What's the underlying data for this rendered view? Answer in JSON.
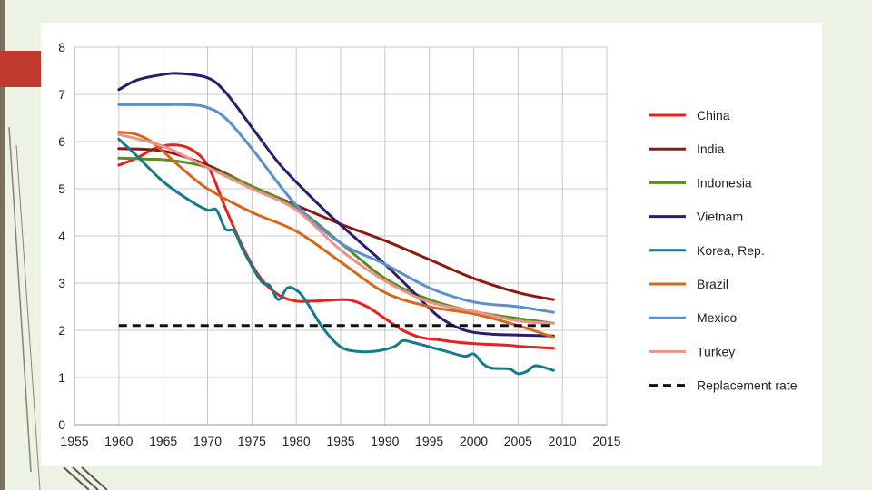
{
  "chart_data": {
    "type": "line",
    "title": "",
    "xlabel": "",
    "ylabel": "",
    "xlim": [
      1955,
      2015
    ],
    "ylim": [
      0,
      8
    ],
    "xticks": [
      1955,
      1960,
      1965,
      1970,
      1975,
      1980,
      1985,
      1990,
      1995,
      2000,
      2005,
      2010,
      2015
    ],
    "yticks": [
      0,
      1,
      2,
      3,
      4,
      5,
      6,
      7,
      8
    ],
    "grid": true,
    "legend_position": "right",
    "series": [
      {
        "name": "China",
        "color": "#e8201e",
        "dashed": false,
        "x": [
          1960,
          1962,
          1964,
          1966,
          1968,
          1970,
          1972,
          1974,
          1976,
          1978,
          1980,
          1982,
          1984,
          1986,
          1988,
          1990,
          1992,
          1994,
          1996,
          1998,
          2000,
          2002,
          2004,
          2006,
          2009
        ],
        "y": [
          5.5,
          5.65,
          5.85,
          5.93,
          5.85,
          5.5,
          4.6,
          3.75,
          3.1,
          2.75,
          2.62,
          2.62,
          2.64,
          2.64,
          2.5,
          2.25,
          2.0,
          1.85,
          1.8,
          1.75,
          1.72,
          1.7,
          1.68,
          1.65,
          1.62
        ]
      },
      {
        "name": "India",
        "color": "#8b1a12",
        "dashed": false,
        "x": [
          1960,
          1965,
          1970,
          1975,
          1980,
          1985,
          1990,
          1995,
          2000,
          2005,
          2009
        ],
        "y": [
          5.85,
          5.8,
          5.5,
          5.05,
          4.65,
          4.25,
          3.9,
          3.5,
          3.1,
          2.8,
          2.65
        ]
      },
      {
        "name": "Indonesia",
        "color": "#5a8f1e",
        "dashed": false,
        "x": [
          1960,
          1963,
          1966,
          1970,
          1975,
          1980,
          1985,
          1990,
          1995,
          2000,
          2005,
          2009
        ],
        "y": [
          5.65,
          5.63,
          5.6,
          5.45,
          5.05,
          4.6,
          3.85,
          3.1,
          2.65,
          2.4,
          2.25,
          2.15
        ]
      },
      {
        "name": "Vietnam",
        "color": "#2b1d6b",
        "dashed": false,
        "x": [
          1960,
          1962,
          1965,
          1967,
          1970,
          1972,
          1975,
          1978,
          1981,
          1984,
          1987,
          1990,
          1993,
          1996,
          1999,
          2002,
          2005,
          2009
        ],
        "y": [
          7.1,
          7.3,
          7.42,
          7.44,
          7.35,
          7.05,
          6.3,
          5.55,
          4.95,
          4.4,
          3.9,
          3.4,
          2.85,
          2.3,
          2.0,
          1.92,
          1.9,
          1.88
        ]
      },
      {
        "name": "Korea, Rep.",
        "color": "#157a8c",
        "dashed": false,
        "x": [
          1960,
          1962,
          1965,
          1968,
          1970,
          1971,
          1972,
          1973,
          1974,
          1976,
          1977,
          1978,
          1979,
          1980,
          1981,
          1983,
          1985,
          1987,
          1989,
          1991,
          1992,
          1993,
          1995,
          1997,
          1999,
          2000,
          2001,
          2002,
          2004,
          2005,
          2006,
          2007,
          2009
        ],
        "y": [
          6.05,
          5.7,
          5.15,
          4.75,
          4.55,
          4.55,
          4.15,
          4.1,
          3.7,
          3.05,
          2.95,
          2.65,
          2.9,
          2.85,
          2.65,
          2.05,
          1.65,
          1.55,
          1.56,
          1.65,
          1.78,
          1.75,
          1.65,
          1.55,
          1.45,
          1.5,
          1.3,
          1.2,
          1.18,
          1.08,
          1.13,
          1.25,
          1.15
        ]
      },
      {
        "name": "Brazil",
        "color": "#d4691b",
        "dashed": false,
        "x": [
          1960,
          1962,
          1964,
          1967,
          1970,
          1975,
          1980,
          1985,
          1990,
          1995,
          2000,
          2005,
          2009
        ],
        "y": [
          6.2,
          6.15,
          5.95,
          5.45,
          5.0,
          4.5,
          4.1,
          3.45,
          2.8,
          2.5,
          2.35,
          2.1,
          1.85
        ]
      },
      {
        "name": "Mexico",
        "color": "#5b8fd0",
        "dashed": false,
        "x": [
          1960,
          1965,
          1968,
          1970,
          1972,
          1975,
          1980,
          1985,
          1990,
          1995,
          2000,
          2005,
          2009
        ],
        "y": [
          6.78,
          6.78,
          6.78,
          6.72,
          6.5,
          5.85,
          4.65,
          3.85,
          3.4,
          2.9,
          2.6,
          2.5,
          2.38
        ]
      },
      {
        "name": "Turkey",
        "color": "#e89590",
        "dashed": false,
        "x": [
          1960,
          1965,
          1970,
          1975,
          1980,
          1985,
          1990,
          1995,
          2000,
          2005,
          2009
        ],
        "y": [
          6.15,
          5.9,
          5.45,
          5.0,
          4.55,
          3.7,
          3.05,
          2.6,
          2.4,
          2.2,
          2.15
        ]
      },
      {
        "name": "Replacement rate",
        "color": "#111111",
        "dashed": true,
        "x": [
          1960,
          2009
        ],
        "y": [
          2.1,
          2.1
        ]
      }
    ]
  }
}
